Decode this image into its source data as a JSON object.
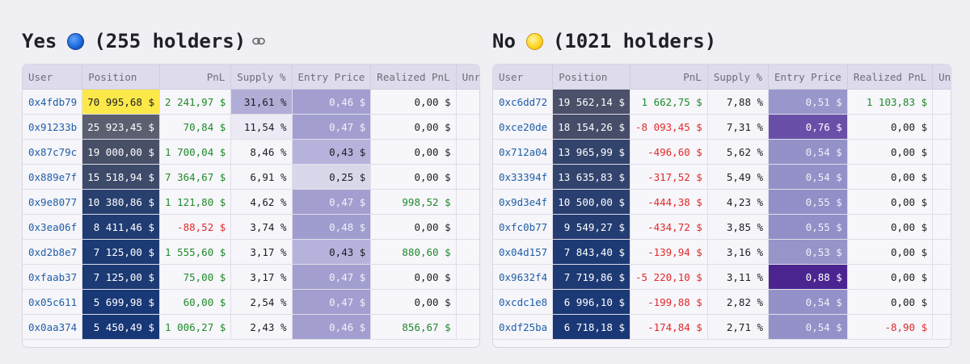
{
  "colors": {
    "pnl_positive": "#1e8a2a",
    "pnl_negative": "#e02a2a",
    "user_link": "#1f5fa8",
    "header_bg": "#dedbec",
    "page_bg": "#f0eff4"
  },
  "columns": [
    "User",
    "Position",
    "PnL",
    "Supply %",
    "Entry Price",
    "Realized PnL",
    "Unre"
  ],
  "yes": {
    "title_word": "Yes",
    "title_icon": "blue-circle-icon",
    "holders": "(255 holders)",
    "link_icon": "link-icon",
    "rows": [
      {
        "user": "0x4fdb79",
        "position": "70 995,68 $",
        "pnl": "2 241,97 $",
        "pnl_sign": "pos",
        "supply": "31,61 %",
        "entry": "0,46 $",
        "realized": "0,00 $",
        "realized_sign": "zero",
        "pos_bg": "#fde84a",
        "pos_fg": "#1d1d23",
        "sup_bg": "#b0aed6",
        "ent_bg": "#a29fd0",
        "ent_fg": "#f2f1fa"
      },
      {
        "user": "0x91233b",
        "position": "25 923,45 $",
        "pnl": "70,84 $",
        "pnl_sign": "pos",
        "supply": "11,54 %",
        "entry": "0,47 $",
        "realized": "0,00 $",
        "realized_sign": "zero",
        "pos_bg": "#5b5f6f",
        "pos_fg": "#ffffff",
        "sup_bg": "#ecebf5",
        "ent_bg": "#a29fd0",
        "ent_fg": "#f2f1fa"
      },
      {
        "user": "0x87c79c",
        "position": "19 000,00 $",
        "pnl": "1 700,04 $",
        "pnl_sign": "pos",
        "supply": "8,46 %",
        "entry": "0,43 $",
        "realized": "0,00 $",
        "realized_sign": "zero",
        "pos_bg": "#485068",
        "pos_fg": "#ffffff",
        "sup_bg": "#f6f5fa",
        "ent_bg": "#b5b3dc",
        "ent_fg": "#1d1d23"
      },
      {
        "user": "0x889e7f",
        "position": "15 518,94 $",
        "pnl": "7 364,67 $",
        "pnl_sign": "pos",
        "supply": "6,91 %",
        "entry": "0,25 $",
        "realized": "0,00 $",
        "realized_sign": "zero",
        "pos_bg": "#3d4a6a",
        "pos_fg": "#ffffff",
        "sup_bg": "#f6f5fa",
        "ent_bg": "#d9d8ea",
        "ent_fg": "#1d1d23"
      },
      {
        "user": "0x9e8077",
        "position": "10 380,86 $",
        "pnl": "1 121,80 $",
        "pnl_sign": "pos",
        "supply": "4,62 %",
        "entry": "0,47 $",
        "realized": "998,52 $",
        "realized_sign": "pos",
        "pos_bg": "#28406e",
        "pos_fg": "#ffffff",
        "sup_bg": "#f6f5fa",
        "ent_bg": "#a29fd0",
        "ent_fg": "#f2f1fa"
      },
      {
        "user": "0x3ea06f",
        "position": "8 411,46 $",
        "pnl": "-88,52 $",
        "pnl_sign": "neg",
        "supply": "3,74 %",
        "entry": "0,48 $",
        "realized": "0,00 $",
        "realized_sign": "zero",
        "pos_bg": "#203c72",
        "pos_fg": "#ffffff",
        "sup_bg": "#f6f5fa",
        "ent_bg": "#9f9ccf",
        "ent_fg": "#f2f1fa"
      },
      {
        "user": "0xd2b8e7",
        "position": "7 125,00 $",
        "pnl": "1 555,60 $",
        "pnl_sign": "pos",
        "supply": "3,17 %",
        "entry": "0,43 $",
        "realized": "880,60 $",
        "realized_sign": "pos",
        "pos_bg": "#1c3a74",
        "pos_fg": "#ffffff",
        "sup_bg": "#f6f5fa",
        "ent_bg": "#b5b3dc",
        "ent_fg": "#1d1d23"
      },
      {
        "user": "0xfaab37",
        "position": "7 125,00 $",
        "pnl": "75,00 $",
        "pnl_sign": "pos",
        "supply": "3,17 %",
        "entry": "0,47 $",
        "realized": "0,00 $",
        "realized_sign": "zero",
        "pos_bg": "#1c3a74",
        "pos_fg": "#ffffff",
        "sup_bg": "#f6f5fa",
        "ent_bg": "#a29fd0",
        "ent_fg": "#f2f1fa"
      },
      {
        "user": "0x05c611",
        "position": "5 699,98 $",
        "pnl": "60,00 $",
        "pnl_sign": "pos",
        "supply": "2,54 %",
        "entry": "0,47 $",
        "realized": "0,00 $",
        "realized_sign": "zero",
        "pos_bg": "#193876",
        "pos_fg": "#ffffff",
        "sup_bg": "#f6f5fa",
        "ent_bg": "#a29fd0",
        "ent_fg": "#f2f1fa"
      },
      {
        "user": "0x0aa374",
        "position": "5 450,49 $",
        "pnl": "1 006,27 $",
        "pnl_sign": "pos",
        "supply": "2,43 %",
        "entry": "0,46 $",
        "realized": "856,67 $",
        "realized_sign": "pos",
        "pos_bg": "#183777",
        "pos_fg": "#ffffff",
        "sup_bg": "#f6f5fa",
        "ent_bg": "#a29fd0",
        "ent_fg": "#f2f1fa"
      }
    ]
  },
  "no": {
    "title_word": "No",
    "title_icon": "yellow-circle-icon",
    "holders": "(1021 holders)",
    "rows": [
      {
        "user": "0xc6dd72",
        "position": "19 562,14 $",
        "pnl": "1 662,75 $",
        "pnl_sign": "pos",
        "supply": "7,88 %",
        "entry": "0,51 $",
        "realized": "1 103,83 $",
        "realized_sign": "pos",
        "pos_bg": "#4b5168",
        "pos_fg": "#ffffff",
        "sup_bg": "#f6f5fa",
        "ent_bg": "#9996cc",
        "ent_fg": "#f2f1fa"
      },
      {
        "user": "0xce20de",
        "position": "18 154,26 $",
        "pnl": "-8 093,45 $",
        "pnl_sign": "neg",
        "supply": "7,31 %",
        "entry": "0,76 $",
        "realized": "0,00 $",
        "realized_sign": "zero",
        "pos_bg": "#454d68",
        "pos_fg": "#ffffff",
        "sup_bg": "#f6f5fa",
        "ent_bg": "#6a4fa8",
        "ent_fg": "#ffffff"
      },
      {
        "user": "0x712a04",
        "position": "13 965,99 $",
        "pnl": "-496,60 $",
        "pnl_sign": "neg",
        "supply": "5,62 %",
        "entry": "0,54 $",
        "realized": "0,00 $",
        "realized_sign": "zero",
        "pos_bg": "#33446c",
        "pos_fg": "#ffffff",
        "sup_bg": "#f6f5fa",
        "ent_bg": "#9491c9",
        "ent_fg": "#f2f1fa"
      },
      {
        "user": "0x33394f",
        "position": "13 635,83 $",
        "pnl": "-317,52 $",
        "pnl_sign": "neg",
        "supply": "5,49 %",
        "entry": "0,54 $",
        "realized": "0,00 $",
        "realized_sign": "zero",
        "pos_bg": "#32436d",
        "pos_fg": "#ffffff",
        "sup_bg": "#f6f5fa",
        "ent_bg": "#9491c9",
        "ent_fg": "#f2f1fa"
      },
      {
        "user": "0x9d3e4f",
        "position": "10 500,00 $",
        "pnl": "-444,38 $",
        "pnl_sign": "neg",
        "supply": "4,23 %",
        "entry": "0,55 $",
        "realized": "0,00 $",
        "realized_sign": "zero",
        "pos_bg": "#283f70",
        "pos_fg": "#ffffff",
        "sup_bg": "#f6f5fa",
        "ent_bg": "#928fc8",
        "ent_fg": "#f2f1fa"
      },
      {
        "user": "0xfc0b77",
        "position": "9 549,27 $",
        "pnl": "-434,72 $",
        "pnl_sign": "neg",
        "supply": "3,85 %",
        "entry": "0,55 $",
        "realized": "0,00 $",
        "realized_sign": "zero",
        "pos_bg": "#233d72",
        "pos_fg": "#ffffff",
        "sup_bg": "#f6f5fa",
        "ent_bg": "#928fc8",
        "ent_fg": "#f2f1fa"
      },
      {
        "user": "0x04d157",
        "position": "7 843,40 $",
        "pnl": "-139,94 $",
        "pnl_sign": "neg",
        "supply": "3,16 %",
        "entry": "0,53 $",
        "realized": "0,00 $",
        "realized_sign": "zero",
        "pos_bg": "#1d3a74",
        "pos_fg": "#ffffff",
        "sup_bg": "#f6f5fa",
        "ent_bg": "#9794ca",
        "ent_fg": "#f2f1fa"
      },
      {
        "user": "0x9632f4",
        "position": "7 719,86 $",
        "pnl": "-5 220,10 $",
        "pnl_sign": "neg",
        "supply": "3,11 %",
        "entry": "0,88 $",
        "realized": "0,00 $",
        "realized_sign": "zero",
        "pos_bg": "#1d3a74",
        "pos_fg": "#ffffff",
        "sup_bg": "#f6f5fa",
        "ent_bg": "#4a2590",
        "ent_fg": "#ffffff"
      },
      {
        "user": "0xcdc1e8",
        "position": "6 996,10 $",
        "pnl": "-199,88 $",
        "pnl_sign": "neg",
        "supply": "2,82 %",
        "entry": "0,54 $",
        "realized": "0,00 $",
        "realized_sign": "zero",
        "pos_bg": "#1b3975",
        "pos_fg": "#ffffff",
        "sup_bg": "#f6f5fa",
        "ent_bg": "#9491c9",
        "ent_fg": "#f2f1fa"
      },
      {
        "user": "0xdf25ba",
        "position": "6 718,18 $",
        "pnl": "-174,84 $",
        "pnl_sign": "neg",
        "supply": "2,71 %",
        "entry": "0,54 $",
        "realized": "-8,90 $",
        "realized_sign": "neg",
        "pos_bg": "#1a3876",
        "pos_fg": "#ffffff",
        "sup_bg": "#f6f5fa",
        "ent_bg": "#9491c9",
        "ent_fg": "#f2f1fa"
      }
    ]
  }
}
